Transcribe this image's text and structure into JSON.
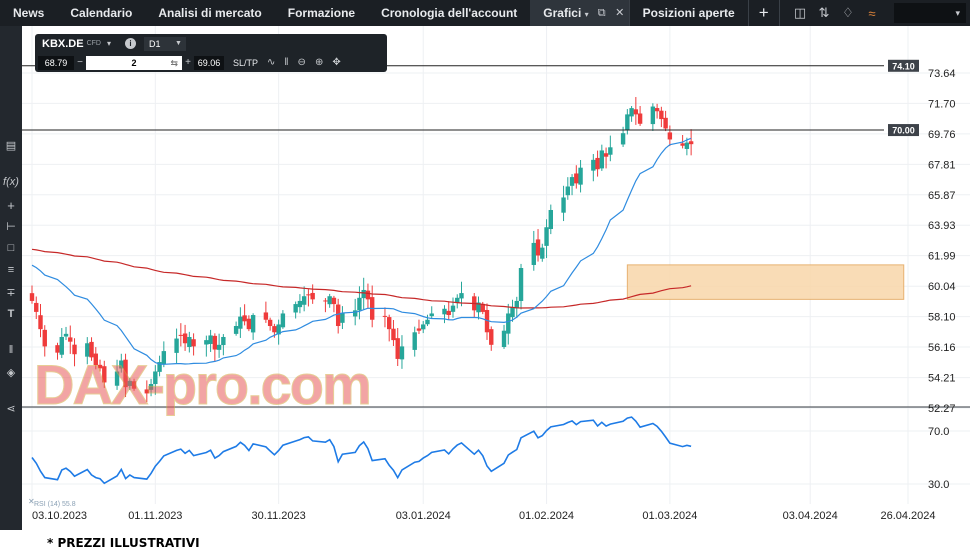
{
  "nav": {
    "items": [
      "News",
      "Calendario",
      "Analisi di mercato",
      "Formazione",
      "Cronologia dell'account"
    ],
    "active_tab": "Grafici",
    "positions": "Posizioni aperte",
    "add": "+"
  },
  "symbol_panel": {
    "symbol": "KBX.DE",
    "instrument_tag": "CFD",
    "timeframe": "D1",
    "sell_price": "68.79",
    "quantity": "2",
    "buy_price": "69.06",
    "sltp_label": "SL/TP"
  },
  "axis": {
    "price_ticks": [
      "73.64",
      "71.70",
      "69.76",
      "67.81",
      "65.87",
      "63.93",
      "61.99",
      "60.04",
      "58.10",
      "56.16",
      "54.21",
      "52.27"
    ],
    "rsi_ticks": [
      "70.0",
      "30.0"
    ],
    "date_ticks": [
      "03.10.2023",
      "01.11.2023",
      "30.11.2023",
      "03.01.2024",
      "01.02.2024",
      "01.03.2024",
      "03.04.2024",
      "26.04.2024"
    ],
    "levels": [
      "74.10",
      "70.00"
    ]
  },
  "indicator_label": "RSI (14) 55.8",
  "watermark": "DAX-pro.com",
  "disclaimer": "* PREZZI ILLUSTRATIVI",
  "colors": {
    "up": "#26a69a",
    "down": "#ef3b3b",
    "ma_fast": "#2f8ce0",
    "ma_slow": "#c62828",
    "zone": "#f9d7aa",
    "rsi": "#1e7be6"
  },
  "chart_data": {
    "type": "candlestick",
    "symbol": "KBX.DE",
    "timeframe": "D1",
    "x_range": [
      "03.10.2023",
      "26.04.2024"
    ],
    "y_range": [
      52.27,
      74.5
    ],
    "grid": true,
    "horizontal_levels": [
      74.1,
      70.0
    ],
    "zone": {
      "from": "2024-02-20",
      "to": "2024-04-25",
      "low": 59.2,
      "high": 61.4
    },
    "series": [
      {
        "kind": "candles",
        "start": "2023-10-03",
        "closes": [
          59.1,
          58.4,
          57.3,
          56.2,
          55.8,
          56.8,
          57.0,
          56.5,
          55.7,
          56.4,
          55.5,
          55.0,
          54.8,
          53.9,
          54.6,
          55.3,
          53.6,
          54.0,
          53.5,
          53.2,
          53.8,
          54.6,
          55.2,
          55.9,
          56.7,
          56.9,
          56.4,
          56.8,
          56.2,
          56.6,
          56.9,
          56.0,
          56.3,
          56.8,
          57.5,
          58.1,
          57.8,
          57.3,
          58.2,
          57.9,
          57.5,
          57.1,
          57.6,
          58.3,
          58.9,
          59.1,
          59.4,
          59.5,
          59.2,
          59.1,
          59.4,
          58.9,
          57.5,
          58.3,
          58.5,
          59.3,
          59.8,
          59.2,
          57.9,
          58.1,
          57.3,
          56.6,
          55.4,
          56.2,
          57.1,
          57.2,
          57.6,
          57.9,
          58.3,
          58.6,
          58.2,
          58.8,
          59.3,
          59.6,
          58.5,
          59.0,
          58.4,
          57.1,
          56.3,
          57.2,
          58.3,
          58.7,
          59.1,
          61.2,
          62.8,
          62.0,
          62.5,
          63.8,
          64.9,
          65.7,
          66.4,
          67.0,
          66.6,
          67.6,
          68.1,
          67.5,
          68.7,
          68.3,
          68.9,
          69.8,
          71.0,
          71.4,
          71.0,
          70.4,
          71.5,
          71.2,
          70.7,
          70.1,
          69.4,
          69.0,
          69.2,
          69.1
        ]
      },
      {
        "kind": "ma",
        "name": "",
        "color": "#2f8ce0"
      },
      {
        "kind": "ma",
        "name": "",
        "color": "#c62828"
      },
      {
        "kind": "rsi",
        "name": "RSI (14)",
        "last": 55.8,
        "levels": [
          70,
          30
        ]
      }
    ]
  }
}
